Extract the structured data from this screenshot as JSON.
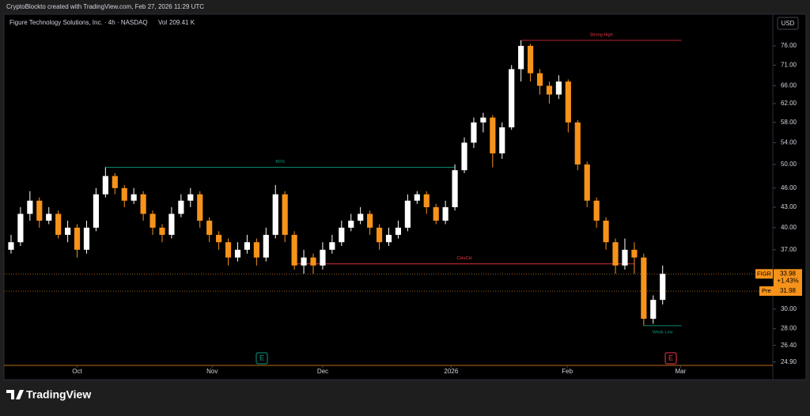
{
  "header": {
    "credit": "CryptoBlockto created with TradingView.com, Feb 27, 2026 11:29 UTC"
  },
  "footer": {
    "brand": "TradingView"
  },
  "chart_data": {
    "type": "candlestick",
    "title": "Figure Technology Solutions, Inc. · 4h · NASDAQ",
    "volume_label": "Vol",
    "volume": "209.41 K",
    "currency": "USD",
    "log_scale": true,
    "up_color": "#ffffff",
    "down_color": "#f7931a",
    "open": [
      37,
      38,
      42,
      44,
      41,
      42,
      39,
      40,
      37,
      40,
      45,
      48,
      46,
      44,
      45,
      42,
      40,
      39,
      42,
      44,
      45,
      41,
      39,
      38,
      36,
      37,
      38,
      36,
      39,
      45,
      39,
      35,
      36,
      35,
      37,
      38,
      40,
      41,
      42,
      40,
      38,
      39,
      40,
      44,
      45,
      43,
      41,
      43,
      49,
      54,
      58,
      59,
      52,
      57,
      70,
      76,
      69,
      66,
      64,
      67,
      58,
      50,
      44,
      41,
      38,
      35,
      37,
      36,
      29,
      31
    ],
    "high": [
      39,
      43,
      45.5,
      44.5,
      43,
      42.5,
      41,
      40.5,
      41,
      46,
      49.5,
      48.5,
      46.5,
      46,
      45.5,
      42.5,
      40.5,
      43,
      45,
      46,
      45.5,
      41.5,
      39.5,
      38.5,
      38,
      39,
      38.5,
      40,
      46.5,
      45.5,
      39.5,
      37,
      36.5,
      38,
      39,
      41,
      42,
      43,
      42.5,
      40.5,
      40,
      41,
      45,
      45.5,
      45.5,
      43.5,
      44,
      50,
      55,
      59,
      60,
      59.5,
      58,
      71,
      77.5,
      76.5,
      70,
      67,
      68.5,
      67.5,
      58.5,
      50.5,
      44.5,
      41.5,
      38.5,
      38.5,
      38,
      36.5,
      31.5,
      35
    ],
    "low": [
      36.5,
      37.5,
      41,
      40,
      40.5,
      38.5,
      38,
      36,
      36.5,
      39.5,
      44.5,
      45,
      43,
      43.5,
      41,
      39,
      38,
      38.5,
      41.5,
      43,
      40,
      38,
      37,
      35,
      35.5,
      36.5,
      35,
      35.5,
      38.5,
      38,
      34.5,
      34,
      34,
      34.5,
      36.5,
      37.5,
      39.5,
      40.5,
      39,
      37,
      37.5,
      38.5,
      39.5,
      43.5,
      42,
      40.5,
      40.5,
      42.5,
      48.5,
      53,
      56,
      49.5,
      51,
      56.5,
      67,
      67,
      64,
      62,
      63,
      56,
      49,
      43,
      40,
      37,
      34,
      34.5,
      34,
      28.3,
      28.5,
      30.5
    ],
    "close": [
      38,
      42,
      44,
      41,
      42,
      39,
      40,
      37,
      40,
      45,
      48,
      46,
      44,
      45,
      42,
      40,
      39,
      42,
      44,
      45,
      41,
      39,
      38,
      36,
      37,
      38,
      36,
      39,
      45,
      39,
      35,
      36,
      35,
      37,
      38,
      40,
      41,
      42,
      40,
      38,
      39,
      40,
      44,
      45,
      43,
      41,
      43,
      49,
      54,
      58,
      59,
      52,
      57,
      70,
      76,
      69,
      66,
      64,
      67,
      58,
      50,
      44,
      41,
      38,
      35,
      37,
      36,
      29,
      31,
      33.98
    ],
    "xlim": [
      0,
      81
    ],
    "xticks": [
      {
        "value": 7.5,
        "label": "Oct"
      },
      {
        "value": 21.8,
        "label": "Nov"
      },
      {
        "value": 33.5,
        "label": "Dec"
      },
      {
        "value": 47.1,
        "label": "2026"
      },
      {
        "value": 59.4,
        "label": "Feb"
      },
      {
        "value": 71.4,
        "label": "Mar"
      }
    ],
    "ylim": [
      24.6,
      84.5
    ],
    "yticks": [
      {
        "value": 76,
        "label": "76.00"
      },
      {
        "value": 71,
        "label": "71.00"
      },
      {
        "value": 66,
        "label": "66.00"
      },
      {
        "value": 62,
        "label": "62.00"
      },
      {
        "value": 58,
        "label": "58.00"
      },
      {
        "value": 54,
        "label": "54.00"
      },
      {
        "value": 50,
        "label": "50.00"
      },
      {
        "value": 46,
        "label": "46.00"
      },
      {
        "value": 43,
        "label": "43.00"
      },
      {
        "value": 40,
        "label": "40.00"
      },
      {
        "value": 37,
        "label": "37.00"
      },
      {
        "value": 30,
        "label": "30.00"
      },
      {
        "value": 28,
        "label": "28.00"
      },
      {
        "value": 26.4,
        "label": "26.40"
      },
      {
        "value": 24.9,
        "label": "24.90"
      }
    ],
    "annotations": [
      {
        "label": "Strong High",
        "price": 77.5,
        "start": 54,
        "end": 71,
        "color": "#f23645"
      },
      {
        "label": "BOS",
        "price": 49.5,
        "start": 10,
        "end": 47,
        "color": "#089981"
      },
      {
        "label": "CHoCH",
        "price": 35.2,
        "start": 30,
        "end": 66,
        "color": "#f23645"
      },
      {
        "label": "Weak Low",
        "price": 28.3,
        "start": 67,
        "end": 71,
        "color": "#089981"
      }
    ],
    "last_price": {
      "label": "FIGR",
      "value": 33.98,
      "change": "+1.43%",
      "color": "#f7931a"
    },
    "pre_price": {
      "label": "Pre",
      "value": 31.98,
      "color": "#f7931a"
    },
    "events": [
      {
        "label": "E"
      },
      {
        "label": "E"
      }
    ]
  }
}
